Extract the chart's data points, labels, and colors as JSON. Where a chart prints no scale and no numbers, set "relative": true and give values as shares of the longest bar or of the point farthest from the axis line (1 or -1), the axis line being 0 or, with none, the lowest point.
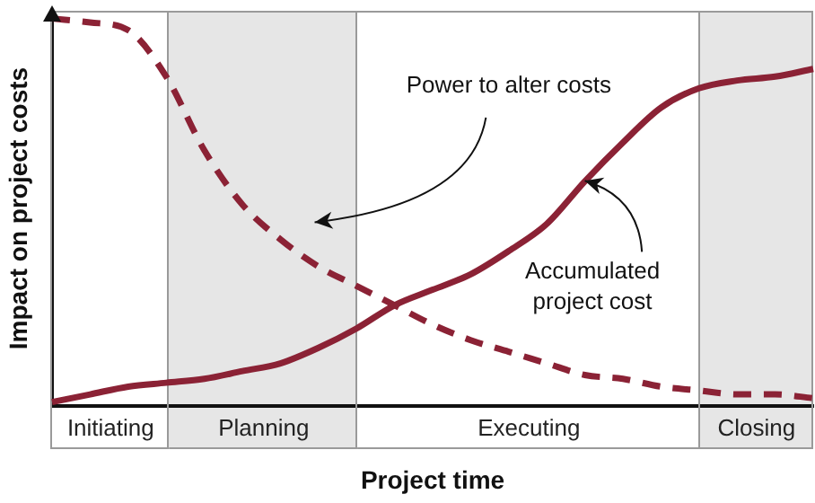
{
  "chart_data": {
    "type": "line",
    "xlabel": "Project time",
    "ylabel": "Impact on project costs",
    "relative": true,
    "marker": "none",
    "grid": "x",
    "categories": [
      null,
      null,
      null,
      null,
      null,
      null,
      null,
      null,
      null,
      null,
      null,
      null,
      null,
      null,
      null,
      null,
      null,
      null,
      null,
      null,
      null
    ],
    "series": [
      {
        "color": "#8b2235",
        "line_style": "dashed",
        "values": [
          1,
          0.99,
          0.97,
          0.85,
          0.66,
          0.52,
          0.43,
          0.36,
          0.31,
          0.26,
          0.21,
          0.17,
          0.14,
          0.11,
          0.08,
          0.07,
          0.05,
          0.04,
          0.03,
          0.03,
          0.02
        ]
      },
      {
        "color": "#8b2235",
        "line_style": "solid",
        "values": [
          0.01,
          0.03,
          0.05,
          0.06,
          0.07,
          0.09,
          0.11,
          0.15,
          0.2,
          0.26,
          0.3,
          0.34,
          0.4,
          0.47,
          0.58,
          0.68,
          0.77,
          0.82,
          0.84,
          0.85,
          0.87
        ]
      }
    ],
    "annotations": [
      "Power to alter costs",
      "Accumulated\nproject cost",
      "Initiating",
      "Planning",
      "Executing",
      "Closing"
    ]
  }
}
